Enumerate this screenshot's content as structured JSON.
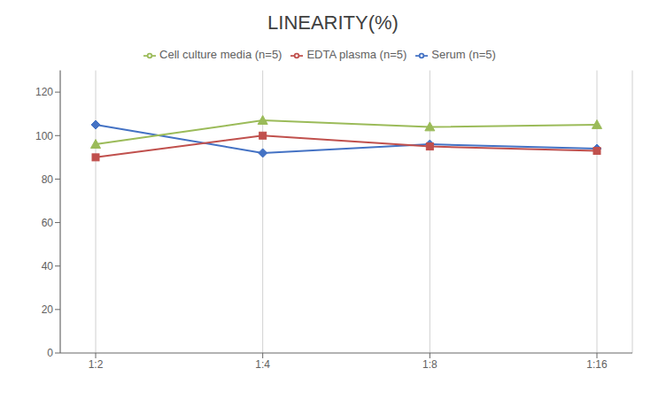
{
  "chart_data": {
    "type": "line",
    "title": "LINEARITY(%)",
    "categories": [
      "1:2",
      "1:4",
      "1:8",
      "1:16"
    ],
    "series": [
      {
        "name": "Serum (n=5)",
        "color": "#4472C4",
        "marker": "diamond",
        "values": [
          105,
          92,
          96,
          94
        ]
      },
      {
        "name": "EDTA plasma (n=5)",
        "color": "#C0504D",
        "marker": "square",
        "values": [
          90,
          100,
          95,
          93
        ]
      },
      {
        "name": "Cell culture media (n=5)",
        "color": "#9BBB59",
        "marker": "triangle",
        "values": [
          96,
          107,
          104,
          105
        ]
      }
    ],
    "ylim": [
      0,
      130
    ],
    "yticks": [
      0,
      20,
      40,
      60,
      80,
      100,
      120
    ],
    "grid": "x",
    "legend": "top"
  }
}
